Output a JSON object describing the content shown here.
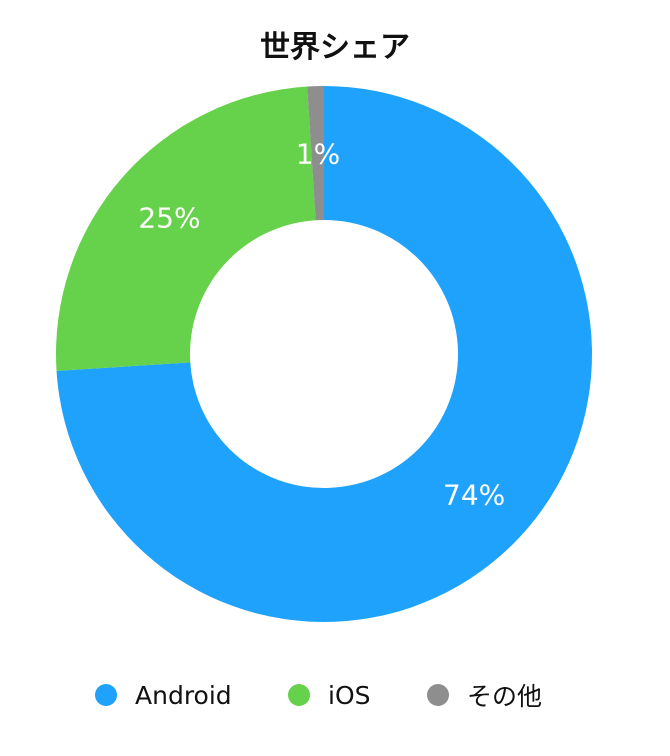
{
  "chart_data": {
    "type": "pie",
    "title": "世界シェア",
    "donut": true,
    "categories": [
      "Android",
      "iOS",
      "その他"
    ],
    "values": [
      74,
      25,
      1
    ],
    "value_labels": [
      "74%",
      "25%",
      "1%"
    ],
    "colors": [
      "#1fa2fb",
      "#66d14a",
      "#8e8e8e"
    ],
    "legend_position": "bottom"
  },
  "legend": {
    "items": [
      {
        "label": "Android",
        "color": "#1fa2fb"
      },
      {
        "label": "iOS",
        "color": "#66d14a"
      },
      {
        "label": "その他",
        "color": "#8e8e8e"
      }
    ]
  }
}
